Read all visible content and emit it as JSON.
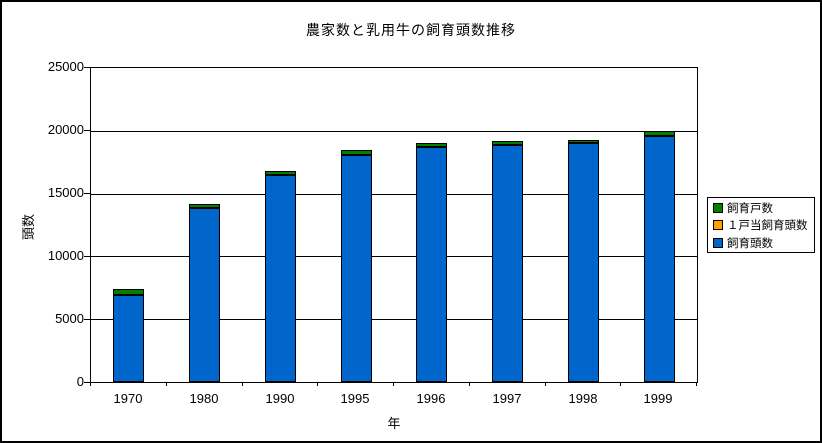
{
  "window": {
    "background": "#ffffff",
    "border_color": "#000000"
  },
  "chart_data": {
    "type": "bar",
    "stacked": true,
    "title": "農家数と乳用牛の飼育頭数推移",
    "xlabel": "年",
    "ylabel": "頭数",
    "categories": [
      "1970",
      "1980",
      "1990",
      "1995",
      "1996",
      "1997",
      "1998",
      "1999"
    ],
    "series": [
      {
        "name": "飼育戸数",
        "color": "#008000",
        "values": [
          450,
          320,
          300,
          400,
          290,
          280,
          240,
          400
        ]
      },
      {
        "name": "１戸当飼育頭数",
        "color": "#FFA000",
        "values": [
          0,
          0,
          0,
          0,
          0,
          0,
          0,
          0
        ]
      },
      {
        "name": "飼育頭数",
        "color": "#0066CC",
        "values": [
          6900,
          13800,
          16450,
          18000,
          18650,
          18800,
          19000,
          19550
        ]
      }
    ],
    "stack_bottom_to_top": [
      "飼育頭数",
      "１戸当飼育頭数",
      "飼育戸数"
    ],
    "ylim": [
      0,
      25000
    ],
    "ytick_step": 5000,
    "ytick_labels": [
      "0",
      "5000",
      "10000",
      "15000",
      "20000",
      "25000"
    ],
    "grid": "horizontal",
    "gridline_color": "#000000",
    "legend_position": "right",
    "bar_color_main": "#0066CC",
    "bar_border_color": "#000000"
  }
}
